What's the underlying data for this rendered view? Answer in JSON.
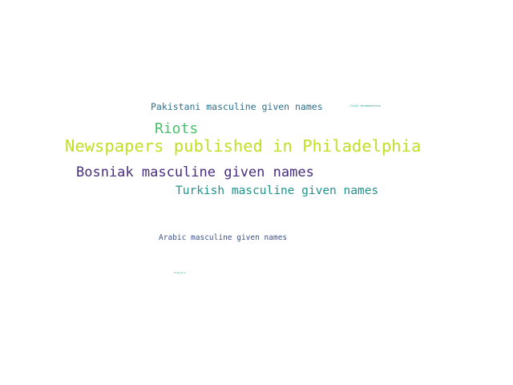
{
  "word_cloud": {
    "words": [
      {
        "text": "Newspapers published in Philadelphia",
        "color": "#c2df23"
      },
      {
        "text": "Bosniak masculine given names",
        "color": "#472d7b"
      },
      {
        "text": "Riots",
        "color": "#4ac16d"
      },
      {
        "text": "Turkish masculine given names",
        "color": "#21918c"
      },
      {
        "text": "Pakistani masculine given names",
        "color": "#2c728e"
      },
      {
        "text": "Arabic masculine given names",
        "color": "#3b528b"
      },
      {
        "text": "Civil disobedience",
        "color": "#1fa187"
      },
      {
        "text": "Premiers",
        "color": "#35b779"
      }
    ]
  }
}
